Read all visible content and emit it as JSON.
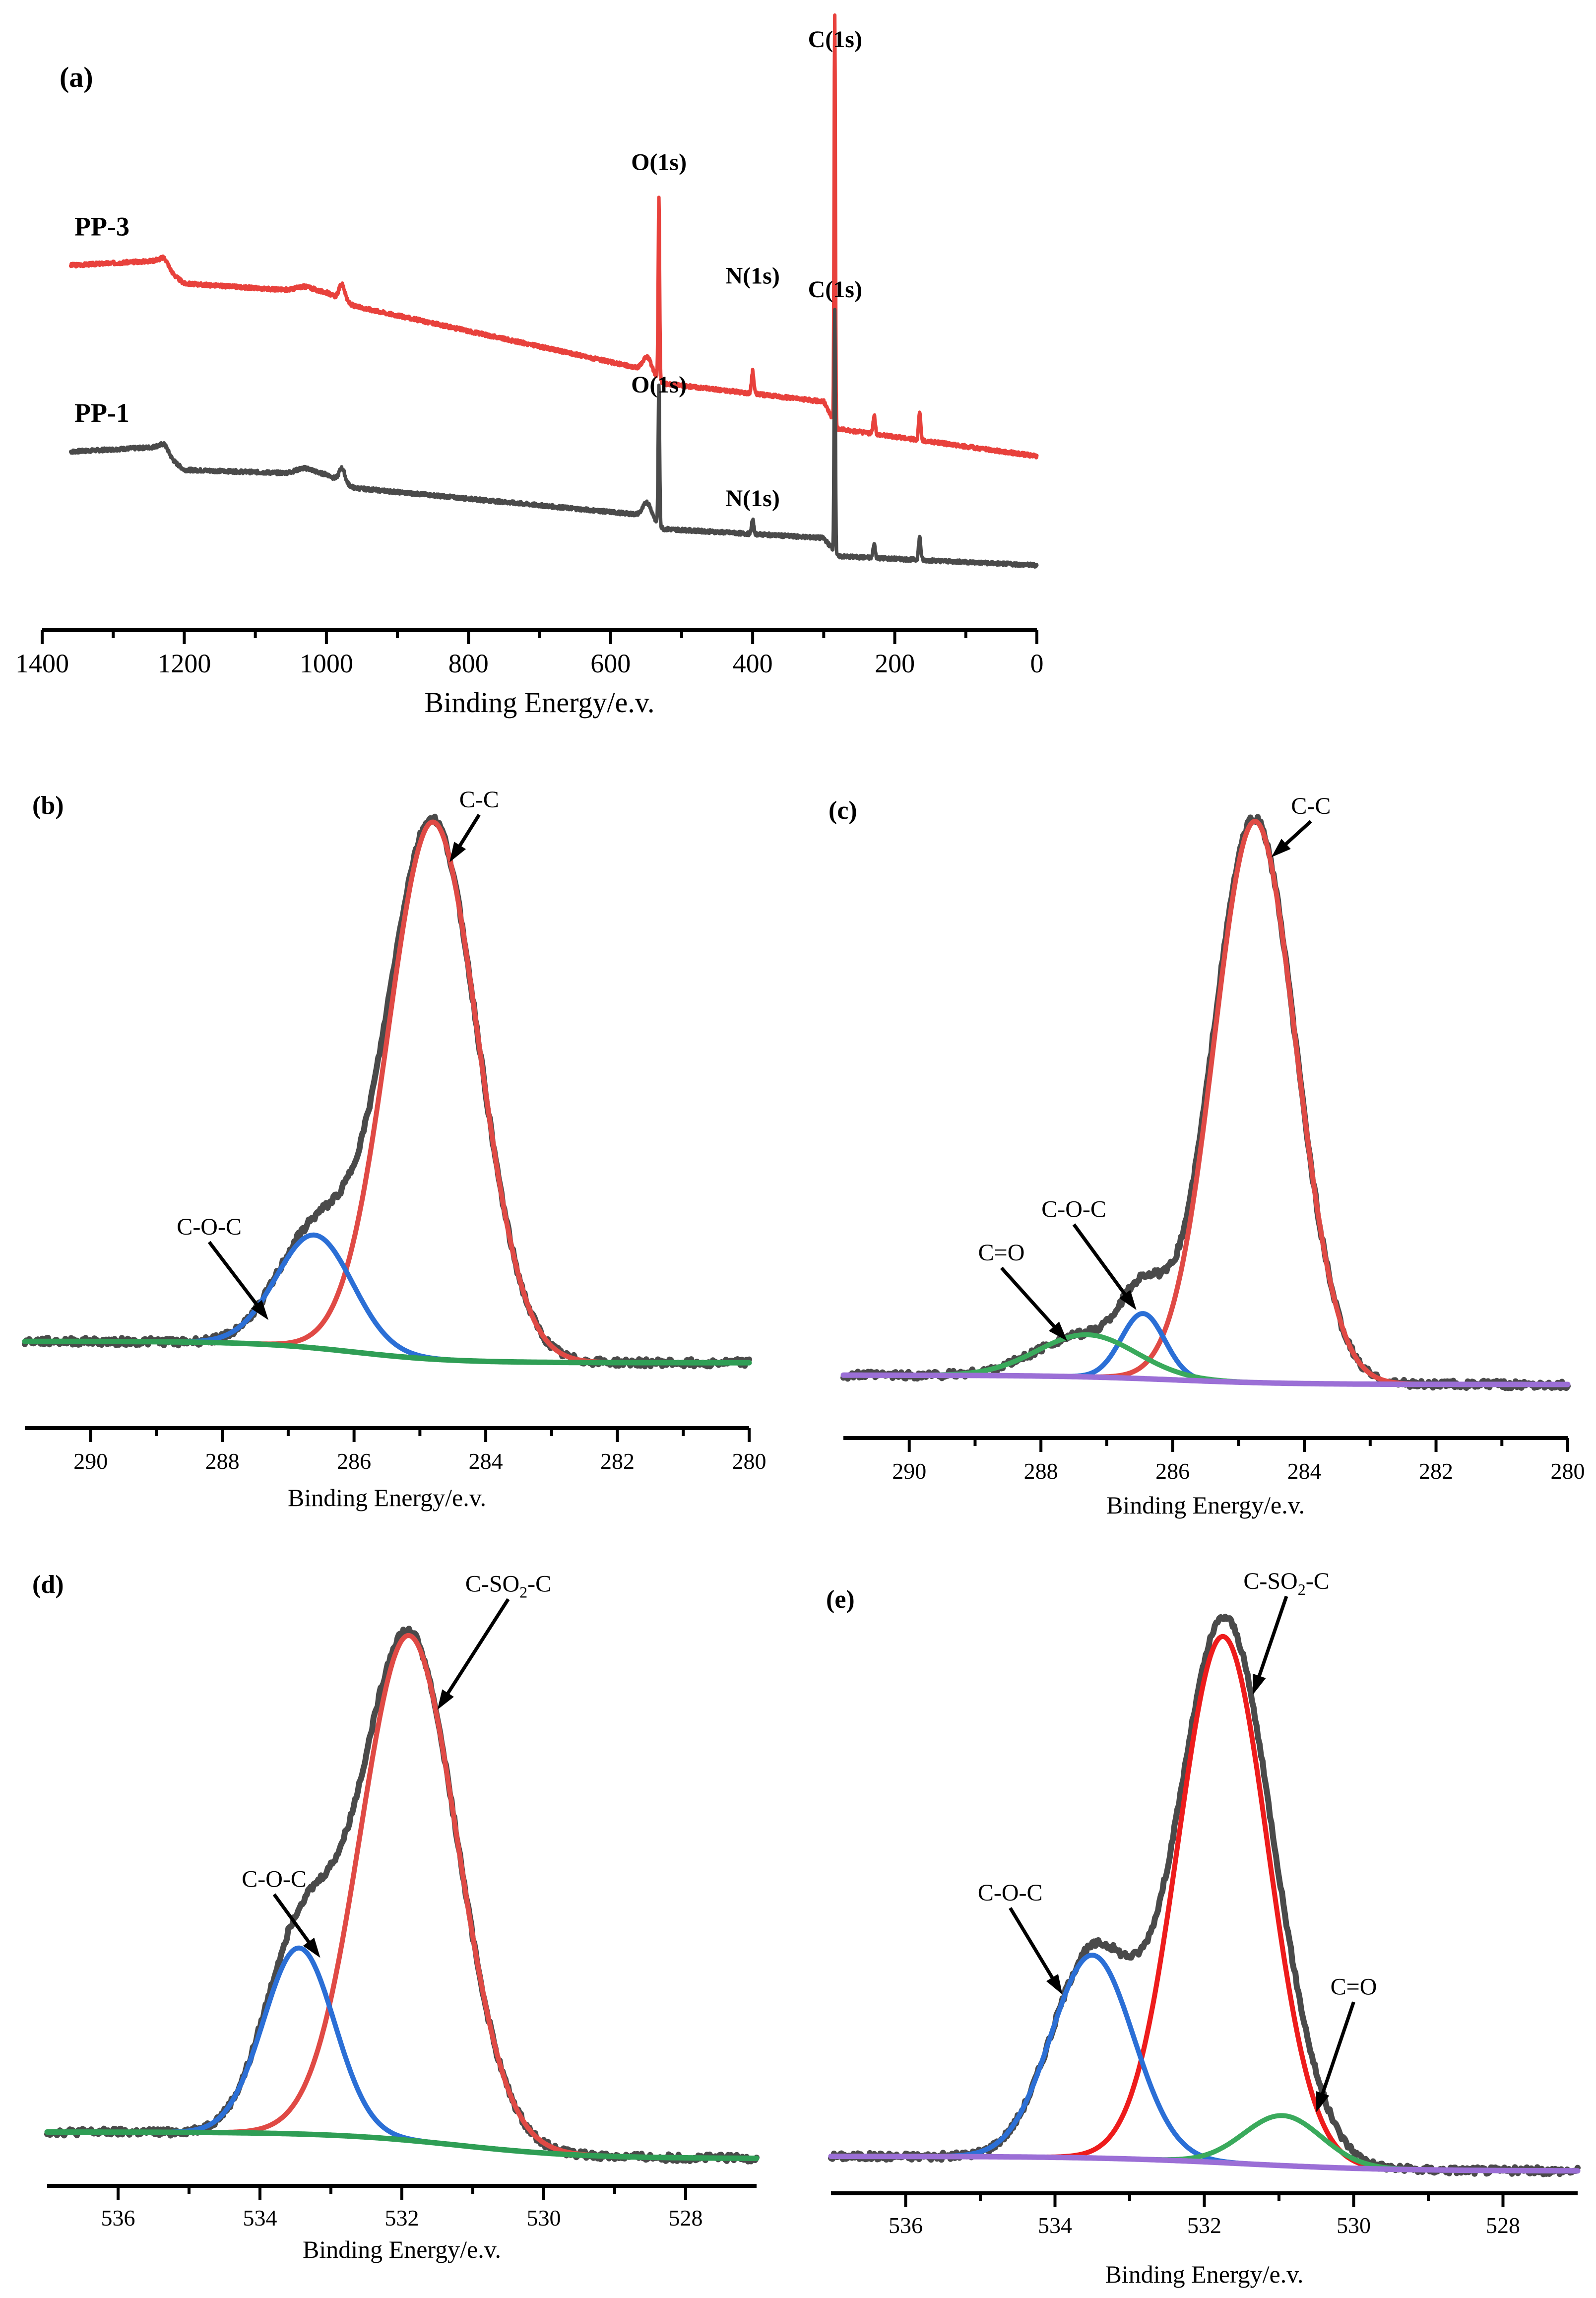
{
  "chart_data": [
    {
      "id": "a",
      "panel_label": "(a)",
      "type": "line",
      "title": "",
      "xlabel": "Binding Energy/e.v.",
      "ylabel": "",
      "xlim": [
        1400,
        0
      ],
      "xticks": [
        1400,
        1200,
        1000,
        800,
        600,
        400,
        200,
        0
      ],
      "tick_labels": [
        "1400",
        "1200",
        "1000",
        "800",
        "600",
        "400",
        "200",
        "0"
      ],
      "series": [
        {
          "name": "PP-3",
          "label": "PP-3",
          "color": "#e8413c",
          "base": [
            [
              1360,
              0.66
            ],
            [
              1240,
              0.67
            ],
            [
              1200,
              0.62
            ],
            [
              1000,
              0.6
            ],
            [
              960,
              0.57
            ],
            [
              550,
              0.43
            ],
            [
              525,
              0.4
            ],
            [
              300,
              0.36
            ],
            [
              280,
              0.3
            ],
            [
              0,
              0.24
            ]
          ],
          "peaks": [
            [
              1228,
              0.02,
              6
            ],
            [
              1030,
              0.01,
              12
            ],
            [
              978,
              0.035,
              4
            ],
            [
              548,
              0.03,
              6
            ],
            [
              532,
              0.4,
              1.0
            ],
            [
              400,
              0.05,
              1.6
            ],
            [
              284.5,
              0.9,
              0.9
            ],
            [
              229,
              0.04,
              1.5
            ],
            [
              165,
              0.06,
              1.5
            ]
          ],
          "noise_seed": 3
        },
        {
          "name": "PP-1",
          "label": "PP-1",
          "color": "#4a4a4a",
          "base": [
            [
              1360,
              0.25
            ],
            [
              1240,
              0.26
            ],
            [
              1200,
              0.21
            ],
            [
              1000,
              0.2
            ],
            [
              960,
              0.17
            ],
            [
              550,
              0.11
            ],
            [
              525,
              0.08
            ],
            [
              300,
              0.06
            ],
            [
              280,
              0.02
            ],
            [
              0,
              0.0
            ]
          ],
          "peaks": [
            [
              1228,
              0.02,
              6
            ],
            [
              1030,
              0.012,
              12
            ],
            [
              978,
              0.03,
              4
            ],
            [
              548,
              0.03,
              6
            ],
            [
              532,
              0.31,
              1.0
            ],
            [
              400,
              0.03,
              1.6
            ],
            [
              284.5,
              0.53,
              0.9
            ],
            [
              229,
              0.03,
              1.5
            ],
            [
              165,
              0.05,
              1.5
            ]
          ],
          "noise_seed": 7
        }
      ],
      "annotations": [
        {
          "text": "C(1s)",
          "x": 284,
          "y": 1.14
        },
        {
          "text": "O(1s)",
          "x": 532,
          "y": 0.87
        },
        {
          "text": "N(1s)",
          "x": 400,
          "y": 0.62
        },
        {
          "text": "C(1s)",
          "x": 284,
          "y": 0.59
        },
        {
          "text": "O(1s)",
          "x": 532,
          "y": 0.38
        },
        {
          "text": "N(1s)",
          "x": 400,
          "y": 0.13
        }
      ],
      "ylim": [
        -0.05,
        1.2
      ]
    },
    {
      "id": "b",
      "panel_label": "(b)",
      "type": "line",
      "title": "",
      "xlabel": "Binding Energy/e.v.",
      "xlim": [
        291,
        280
      ],
      "xticks": [
        290,
        288,
        286,
        284,
        282,
        280
      ],
      "tick_labels": [
        "290",
        "288",
        "286",
        "284",
        "282",
        "280"
      ],
      "ylim": [
        0,
        1.0
      ],
      "background": {
        "kind": "shirley",
        "left": 0.095,
        "right": 0.06,
        "center": 286.0,
        "width": 0.75
      },
      "components": [
        {
          "name": "C-C",
          "center": 284.8,
          "height": 0.88,
          "sigma": 0.68,
          "color": "#e04a45"
        },
        {
          "name": "C-O-C",
          "center": 286.6,
          "height": 0.185,
          "sigma": 0.58,
          "color": "#2b6fd6"
        }
      ],
      "background_color": "#2f9e55",
      "envelope_color": "#4a4a4a",
      "annotations": [
        {
          "text": "C-C",
          "x": 284.1,
          "y": 0.97,
          "arrow_to": [
            284.55,
            0.88
          ]
        },
        {
          "text": "C-O-C",
          "x": 288.2,
          "y": 0.27,
          "arrow_to": [
            287.3,
            0.13
          ]
        }
      ]
    },
    {
      "id": "c",
      "panel_label": "(c)",
      "type": "line",
      "title": "",
      "xlabel": "Binding Energy/e.v.",
      "xlim": [
        291,
        280
      ],
      "xticks": [
        290,
        288,
        286,
        284,
        282,
        280
      ],
      "tick_labels": [
        "290",
        "288",
        "286",
        "284",
        "282",
        "280"
      ],
      "ylim": [
        0,
        1.0
      ],
      "background": {
        "kind": "shirley",
        "left": 0.055,
        "right": 0.04,
        "center": 286.0,
        "width": 0.9
      },
      "components": [
        {
          "name": "C-C",
          "center": 284.75,
          "height": 0.905,
          "sigma": 0.62,
          "color": "#e04a45"
        },
        {
          "name": "C-O-C",
          "center": 286.45,
          "height": 0.105,
          "sigma": 0.33,
          "color": "#2b6fd6"
        },
        {
          "name": "C=O",
          "center": 287.3,
          "height": 0.068,
          "sigma": 0.75,
          "color": "#3aaa5c"
        }
      ],
      "background_color": "#9b6fd6",
      "envelope_color": "#4a4a4a",
      "annotations": [
        {
          "text": "C-C",
          "x": 283.9,
          "y": 0.96,
          "arrow_to": [
            284.5,
            0.89
          ]
        },
        {
          "text": "C-O-C",
          "x": 287.5,
          "y": 0.31,
          "arrow_to": [
            286.55,
            0.16
          ]
        },
        {
          "text": "C=O",
          "x": 288.6,
          "y": 0.24,
          "arrow_to": [
            287.6,
            0.11
          ]
        }
      ]
    },
    {
      "id": "d",
      "panel_label": "(d)",
      "type": "line",
      "title": "",
      "xlabel": "Binding Energy/e.v.",
      "xlim": [
        537,
        527
      ],
      "xticks": [
        536,
        534,
        532,
        530,
        528
      ],
      "tick_labels": [
        "536",
        "534",
        "532",
        "530",
        "528"
      ],
      "ylim": [
        0,
        1.0
      ],
      "background": {
        "kind": "shirley",
        "left": 0.045,
        "right": 0.0,
        "center": 531.2,
        "width": 0.9
      },
      "components": [
        {
          "name": "C-SO2-C",
          "center": 531.9,
          "height": 0.855,
          "sigma": 0.68,
          "color": "#e04a45"
        },
        {
          "name": "C-O-C",
          "center": 533.45,
          "height": 0.315,
          "sigma": 0.5,
          "color": "#2b6fd6"
        }
      ],
      "background_color": "#2f9e55",
      "envelope_color": "#4a4a4a",
      "annotations": [
        {
          "text": "C-SO",
          "sub": "2",
          "tail": "-C",
          "x": 530.5,
          "y": 0.96,
          "arrow_to": [
            531.5,
            0.76
          ]
        },
        {
          "text": "C-O-C",
          "x": 533.8,
          "y": 0.46,
          "arrow_to": [
            533.15,
            0.34
          ]
        }
      ]
    },
    {
      "id": "e",
      "panel_label": "(e)",
      "type": "line",
      "title": "",
      "xlabel": "Binding Energy/e.v.",
      "xlim": [
        537,
        527
      ],
      "xticks": [
        536,
        534,
        532,
        530,
        528
      ],
      "tick_labels": [
        "536",
        "534",
        "532",
        "530",
        "528"
      ],
      "ylim": [
        0,
        1.0
      ],
      "background": {
        "kind": "shirley",
        "left": 0.025,
        "right": 0.0,
        "center": 531.5,
        "width": 1.0
      },
      "components": [
        {
          "name": "C-SO2-C",
          "center": 531.75,
          "height": 0.895,
          "sigma": 0.6,
          "color": "#ee1c1c"
        },
        {
          "name": "C-O-C",
          "center": 533.5,
          "height": 0.345,
          "sigma": 0.55,
          "color": "#2b6fd6"
        },
        {
          "name": "C=O",
          "center": 530.95,
          "height": 0.085,
          "sigma": 0.52,
          "color": "#3aaa5c"
        }
      ],
      "background_color": "#9b6fd6",
      "envelope_color": "#4a4a4a",
      "annotations": [
        {
          "text": "C-SO",
          "sub": "2",
          "tail": "-C",
          "x": 530.9,
          "y": 0.99,
          "arrow_to": [
            531.35,
            0.81
          ]
        },
        {
          "text": "C-O-C",
          "x": 534.6,
          "y": 0.46,
          "arrow_to": [
            533.9,
            0.3
          ]
        },
        {
          "text": "C=O",
          "x": 530.0,
          "y": 0.3,
          "arrow_to": [
            530.5,
            0.1
          ]
        }
      ]
    }
  ]
}
